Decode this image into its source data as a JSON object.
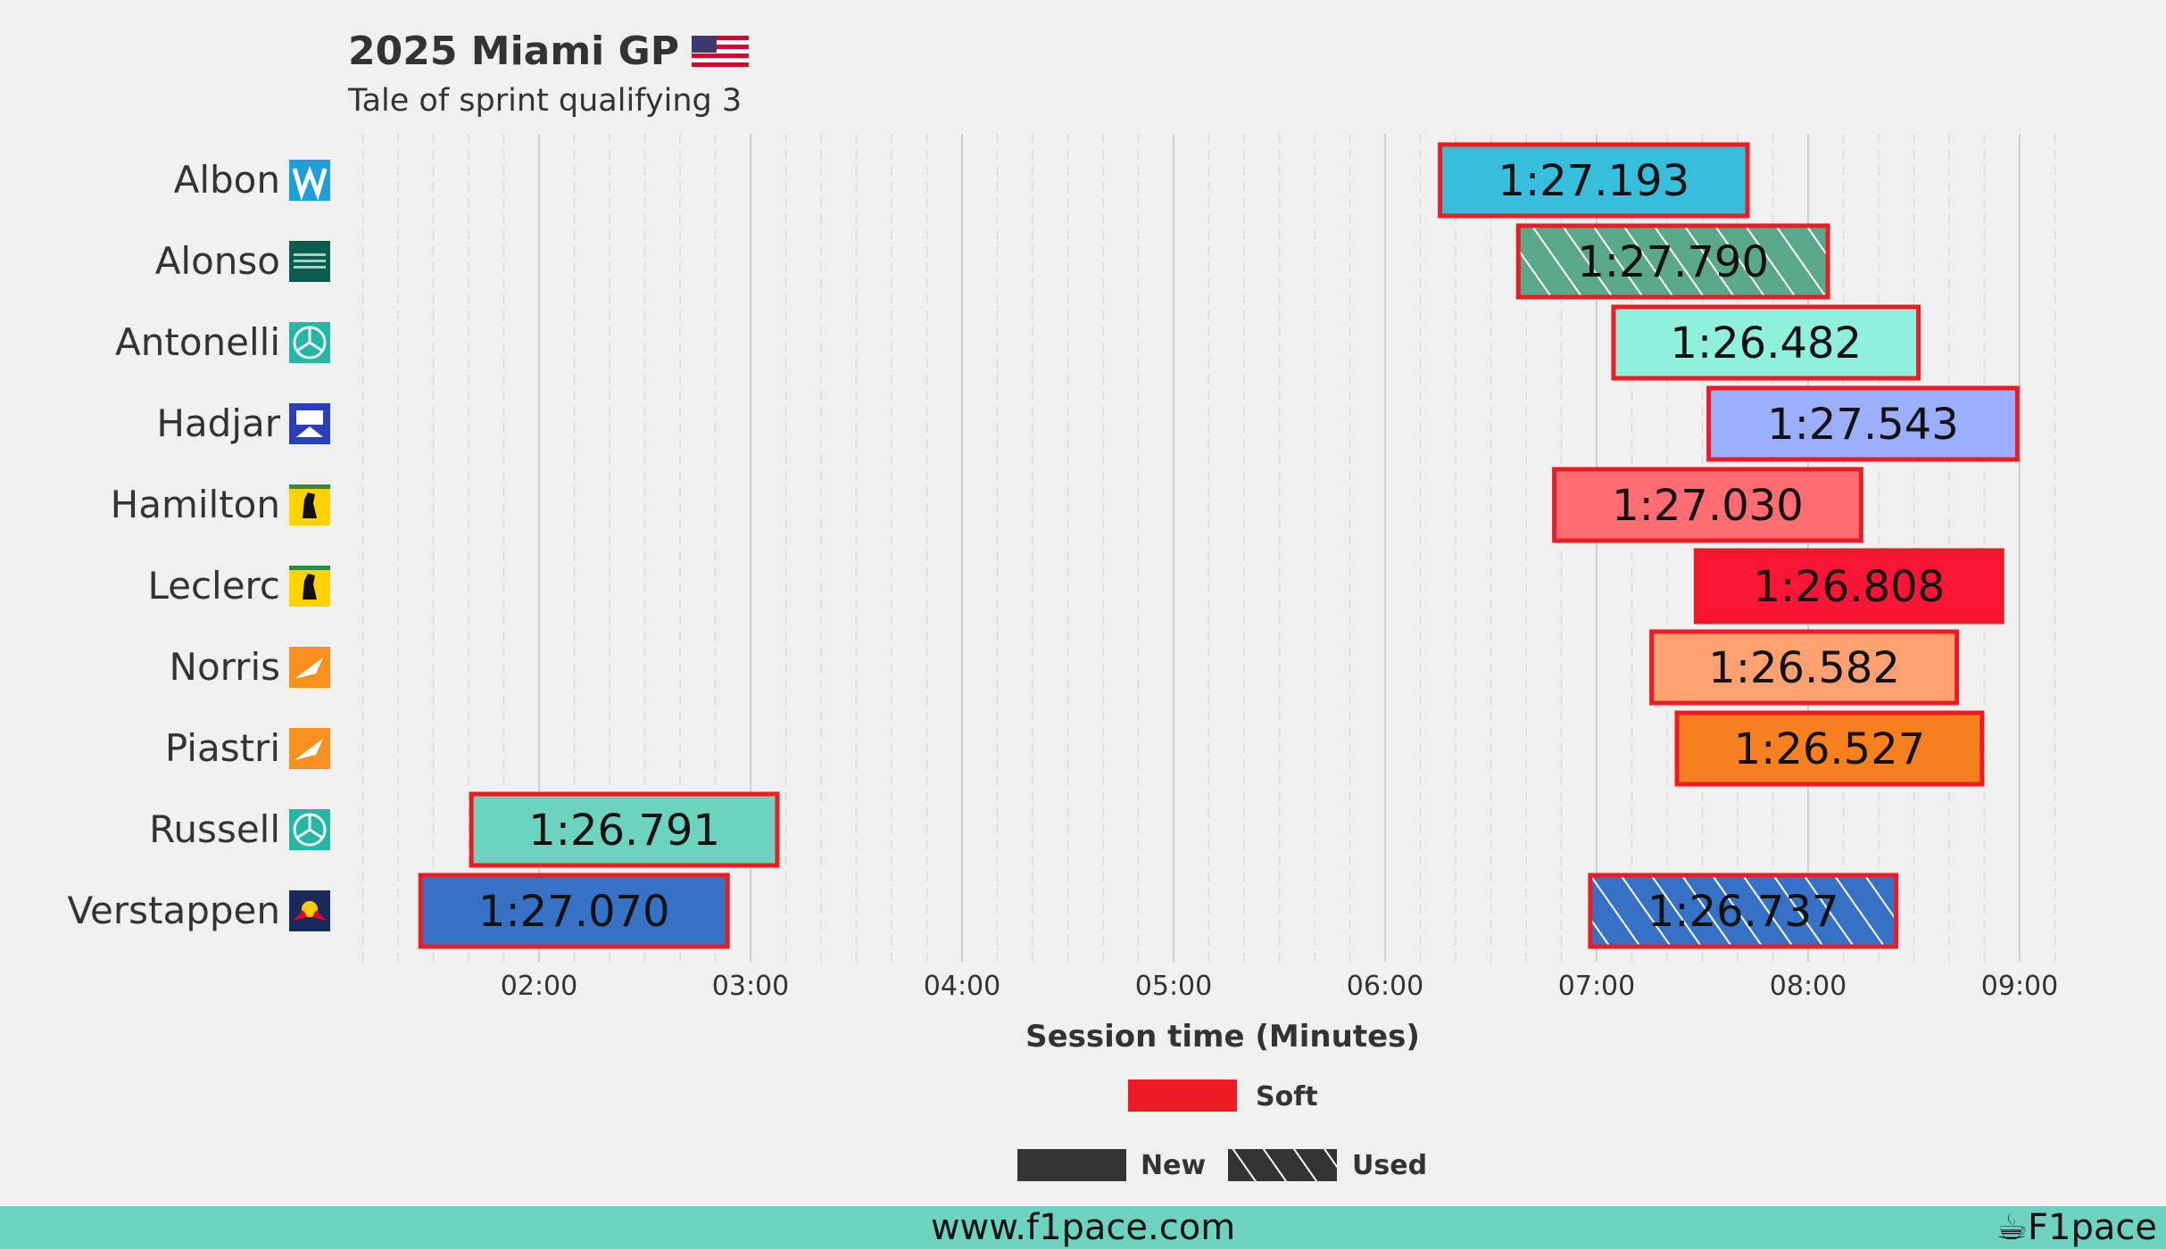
{
  "title": "2025 Miami GP",
  "subtitle": "Tale of sprint qualifying 3",
  "flag_icon": "usa-flag-icon",
  "footer": {
    "url": "www.f1pace.com",
    "brand": "F1pace",
    "brand_icon": "coffee-cup-icon"
  },
  "colors": {
    "background": "#f0f0f0",
    "footer": "#6dd3c0",
    "soft_compound": "#ed1c24",
    "text": "#333333"
  },
  "chart_data": {
    "type": "bar",
    "orientation": "horizontal-timeline",
    "xlabel": "Session time (Minutes)",
    "x_ticks": [
      "02:00",
      "03:00",
      "04:00",
      "05:00",
      "06:00",
      "07:00",
      "08:00",
      "09:00"
    ],
    "xlim_minutes": [
      1.08,
      9.33
    ],
    "grid": true,
    "drivers": [
      {
        "name": "Albon",
        "team_icon": "williams-logo-icon"
      },
      {
        "name": "Alonso",
        "team_icon": "aston-martin-logo-icon"
      },
      {
        "name": "Antonelli",
        "team_icon": "mercedes-logo-icon"
      },
      {
        "name": "Hadjar",
        "team_icon": "racing-bulls-logo-icon"
      },
      {
        "name": "Hamilton",
        "team_icon": "ferrari-logo-icon"
      },
      {
        "name": "Leclerc",
        "team_icon": "ferrari-logo-icon"
      },
      {
        "name": "Norris",
        "team_icon": "mclaren-logo-icon"
      },
      {
        "name": "Piastri",
        "team_icon": "mclaren-logo-icon"
      },
      {
        "name": "Russell",
        "team_icon": "mercedes-logo-icon"
      },
      {
        "name": "Verstappen",
        "team_icon": "red-bull-logo-icon"
      }
    ],
    "laps": [
      {
        "driver": "Albon",
        "start_min": 6.26,
        "lap_time": "1:27.193",
        "duration_s": 87.193,
        "compound": "Soft",
        "tyre": "New",
        "color": "#37bedd"
      },
      {
        "driver": "Alonso",
        "start_min": 6.63,
        "lap_time": "1:27.790",
        "duration_s": 87.79,
        "compound": "Soft",
        "tyre": "Used",
        "color": "#5aa88a"
      },
      {
        "driver": "Antonelli",
        "start_min": 7.08,
        "lap_time": "1:26.482",
        "duration_s": 86.482,
        "compound": "Soft",
        "tyre": "New",
        "color": "#8ff0dc"
      },
      {
        "driver": "Hadjar",
        "start_min": 7.53,
        "lap_time": "1:27.543",
        "duration_s": 87.543,
        "compound": "Soft",
        "tyre": "New",
        "color": "#9aaefb"
      },
      {
        "driver": "Hamilton",
        "start_min": 6.8,
        "lap_time": "1:27.030",
        "duration_s": 87.03,
        "compound": "Soft",
        "tyre": "New",
        "color": "#ff6d72"
      },
      {
        "driver": "Leclerc",
        "start_min": 7.47,
        "lap_time": "1:26.808",
        "duration_s": 86.808,
        "compound": "Soft",
        "tyre": "New",
        "color": "#f91536"
      },
      {
        "driver": "Norris",
        "start_min": 7.26,
        "lap_time": "1:26.582",
        "duration_s": 86.582,
        "compound": "Soft",
        "tyre": "New",
        "color": "#ffa070"
      },
      {
        "driver": "Piastri",
        "start_min": 7.38,
        "lap_time": "1:26.527",
        "duration_s": 86.527,
        "compound": "Soft",
        "tyre": "New",
        "color": "#f7801e"
      },
      {
        "driver": "Russell",
        "start_min": 1.68,
        "lap_time": "1:26.791",
        "duration_s": 86.791,
        "compound": "Soft",
        "tyre": "New",
        "color": "#6cd4be"
      },
      {
        "driver": "Verstappen",
        "start_min": 1.44,
        "lap_time": "1:27.070",
        "duration_s": 87.07,
        "compound": "Soft",
        "tyre": "New",
        "color": "#3671c6"
      },
      {
        "driver": "Verstappen",
        "start_min": 6.97,
        "lap_time": "1:26.737",
        "duration_s": 86.737,
        "compound": "Soft",
        "tyre": "Used",
        "color": "#3671c6"
      }
    ],
    "legend": {
      "compounds": [
        {
          "label": "Soft",
          "color": "#ed1c24"
        }
      ],
      "tyre_states": [
        {
          "label": "New"
        },
        {
          "label": "Used"
        }
      ],
      "placement": "bottom-center"
    }
  }
}
